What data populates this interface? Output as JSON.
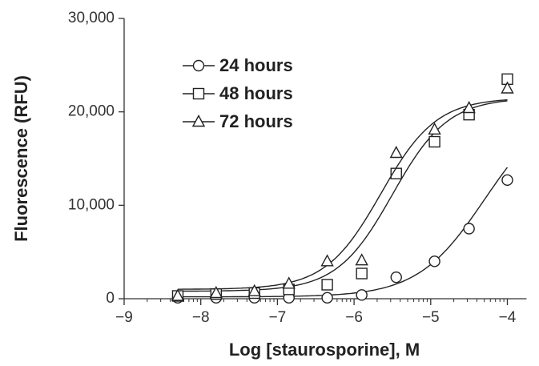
{
  "chart_data": {
    "type": "scatter",
    "x_label": "Log [staurosporine], M",
    "y_label": "Fluorescence (RFU)",
    "xlim": [
      -9,
      -3.75
    ],
    "xticks": [
      {
        "value": -9,
        "label": "−9"
      },
      {
        "value": -8,
        "label": "−8"
      },
      {
        "value": -7,
        "label": "−7"
      },
      {
        "value": -6,
        "label": "−6"
      },
      {
        "value": -5,
        "label": "−5"
      },
      {
        "value": -4,
        "label": "−4"
      }
    ],
    "ylim": [
      0,
      30000
    ],
    "yticks": [
      0,
      {
        "value": 10000,
        "label": "10,000"
      },
      {
        "value": 20000,
        "label": "20,000"
      },
      {
        "value": 30000,
        "label": "30,000"
      }
    ],
    "x": [
      -8.3,
      -7.8,
      -7.3,
      -6.85,
      -6.35,
      -5.9,
      -5.45,
      -4.95,
      -4.5,
      -4.0
    ],
    "series": [
      {
        "name": "24 hours",
        "marker": "circle",
        "color": "#222",
        "values": [
          100,
          100,
          100,
          100,
          100,
          400,
          2300,
          4000,
          7500,
          12700
        ],
        "curve": {
          "bottom": 200,
          "top": 21000,
          "log_ec50": -4.3,
          "hill": 1.0
        }
      },
      {
        "name": "48 hours",
        "marker": "square",
        "color": "#222",
        "values": [
          300,
          500,
          600,
          1000,
          1500,
          2700,
          13400,
          16800,
          19700,
          23500
        ],
        "curve": {
          "bottom": 800,
          "top": 21500,
          "log_ec50": -5.5,
          "hill": 1.2
        }
      },
      {
        "name": "72 hours",
        "marker": "triangle",
        "color": "#222",
        "values": [
          300,
          600,
          800,
          1600,
          4000,
          4100,
          15600,
          18100,
          20400,
          22500
        ],
        "curve": {
          "bottom": 1000,
          "top": 21500,
          "log_ec50": -5.65,
          "hill": 1.2
        }
      }
    ]
  }
}
